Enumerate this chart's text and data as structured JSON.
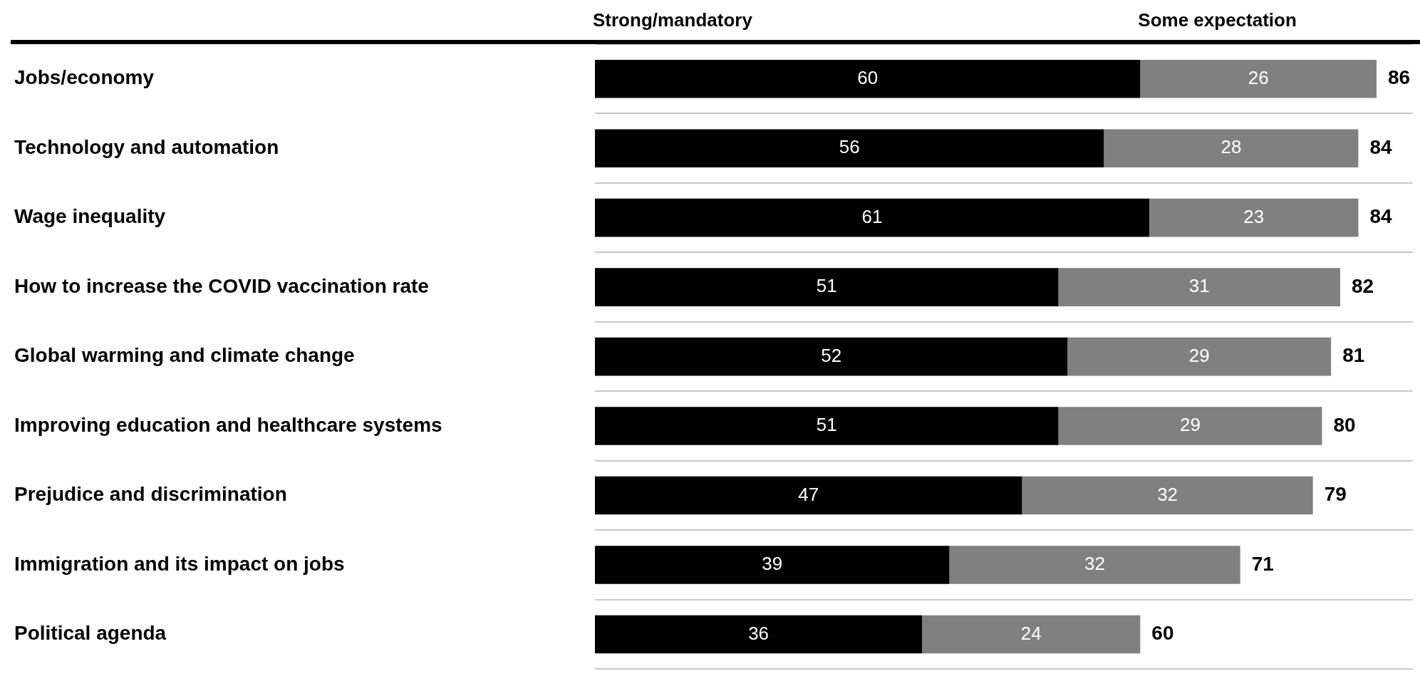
{
  "chart_data": {
    "type": "bar",
    "orientation": "horizontal",
    "stacked": true,
    "categories": [
      "Jobs/economy",
      "Technology and automation",
      "Wage inequality",
      "How to increase the COVID vaccination rate",
      "Global warming and climate change",
      "Improving education and healthcare systems",
      "Prejudice and discrimination",
      "Immigration and its impact on jobs",
      "Political agenda"
    ],
    "series": [
      {
        "name": "Strong/mandatory",
        "color": "#000000",
        "values": [
          60,
          56,
          61,
          51,
          52,
          51,
          47,
          39,
          36
        ]
      },
      {
        "name": "Some expectation",
        "color": "#808080",
        "values": [
          26,
          28,
          23,
          31,
          29,
          29,
          32,
          32,
          24
        ]
      }
    ],
    "totals": [
      "86",
      "84",
      "84",
      "82",
      "81",
      "80",
      "79",
      "71",
      "60"
    ],
    "data_labels": true,
    "legend": "top",
    "grid": "y",
    "tick_labels": "y"
  }
}
